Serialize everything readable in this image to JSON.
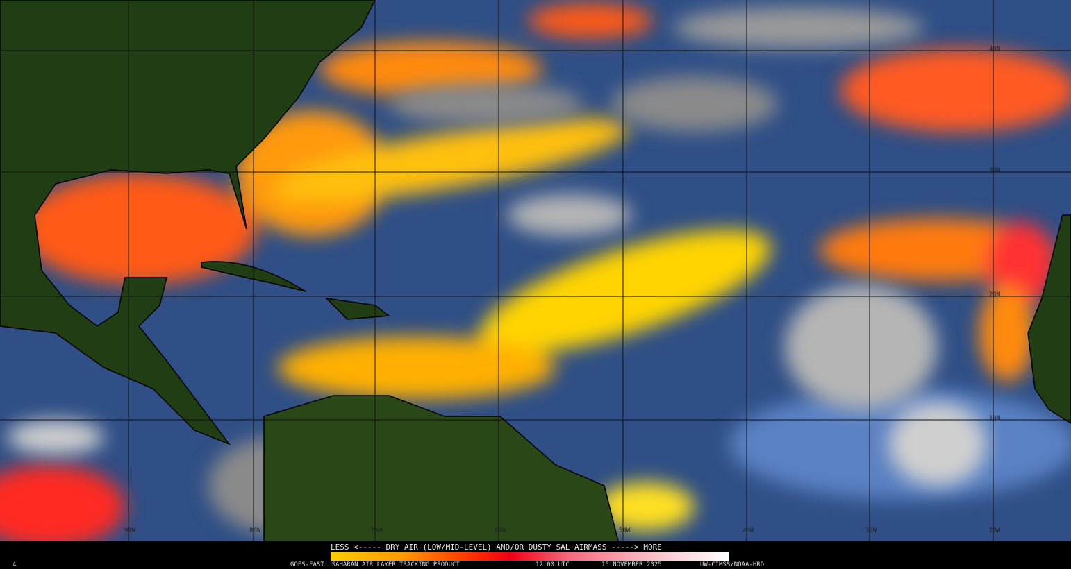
{
  "map": {
    "product": "GOES-EAST: SAHARAN AIR LAYER TRACKING PRODUCT",
    "latitude_labels": [
      "40N",
      "30N",
      "20N",
      "10N"
    ],
    "longitude_labels": [
      "90W",
      "80W",
      "70W",
      "60W",
      "50W",
      "40W",
      "30W",
      "20W"
    ],
    "colors": {
      "ocean": "#2f4f86",
      "land": "#1f3a12",
      "cloud": "#b8b8b8",
      "sal_low": "#ffcc00",
      "sal_mid": "#ff3300",
      "sal_high": "#ffffff"
    }
  },
  "legend": {
    "title": "LESS <----- DRY AIR (LOW/MID-LEVEL) AND/OR DUSTY SAL AIRMASS -----> MORE",
    "gradient": [
      "#ffcc00",
      "#ff9900",
      "#ff3300",
      "#ee0011",
      "#f56a80",
      "#f9b4be",
      "#ffffff"
    ]
  },
  "footer": {
    "frame": "4",
    "product": "GOES-EAST: SAHARAN AIR LAYER TRACKING PRODUCT",
    "time": "12:00 UTC",
    "date": "15 NOVEMBER 2025",
    "credit": "UW-CIMSS/NOAA-HRD"
  }
}
